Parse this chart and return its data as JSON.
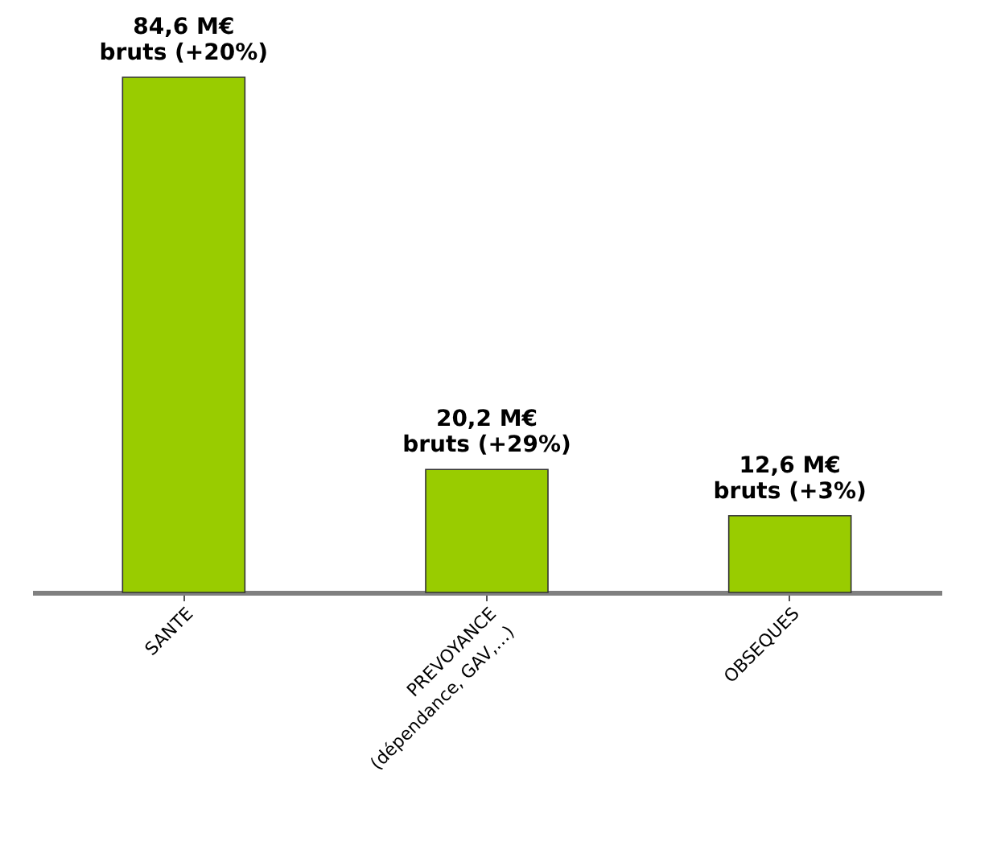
{
  "chart_data": {
    "type": "bar",
    "categories": [
      "SANTE",
      "PREVOYANCE\n(dépendance, GAV,…)",
      "OBSEQUES"
    ],
    "values": [
      84.6,
      20.2,
      12.6
    ],
    "value_labels": [
      "84,6 M€\nbruts (+20%)",
      "20,2 M€\nbruts (+29%)",
      "12,6 M€\nbruts (+3%)"
    ],
    "color": "#99cc00"
  }
}
